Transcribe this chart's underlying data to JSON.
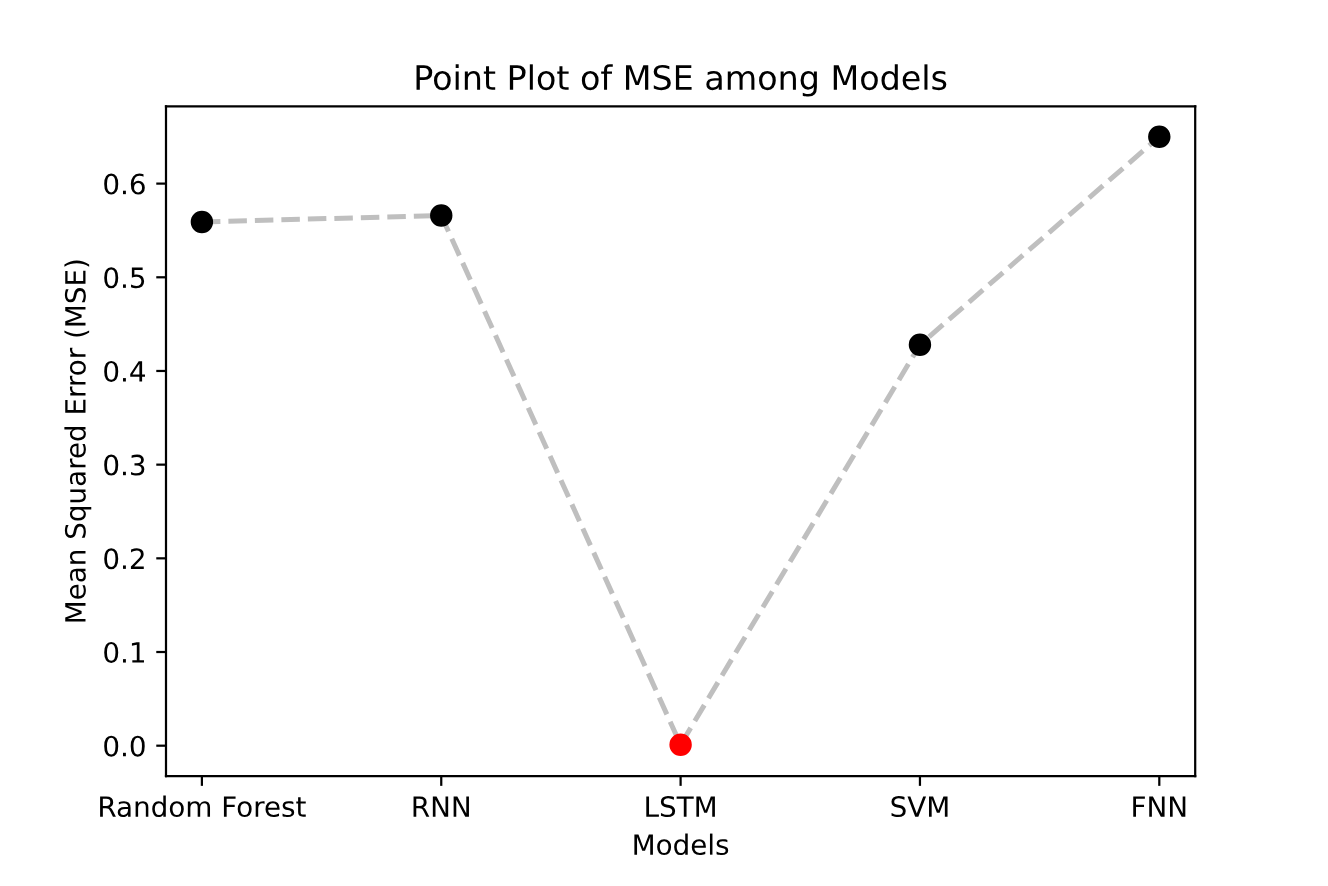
{
  "chart_data": {
    "type": "line",
    "title": "Point Plot of MSE among Models",
    "xlabel": "Models",
    "ylabel": "Mean Squared Error (MSE)",
    "categories": [
      "Random Forest",
      "RNN",
      "LSTM",
      "SVM",
      "FNN"
    ],
    "series": [
      {
        "color": "#bfbfbf",
        "colors": [
          "#000000",
          "#000000",
          "#ff0000",
          "#000000",
          "#000000"
        ],
        "values": [
          0.559,
          0.566,
          0.001,
          0.428,
          0.65
        ]
      }
    ],
    "ylim": [
      -0.0325,
      0.6825
    ],
    "yticks": [
      {
        "value": 0,
        "label": "0.0"
      },
      0.1,
      0.2,
      0.3,
      0.4,
      0.5,
      0.6
    ],
    "marker": "circle",
    "line_style": "dashed",
    "grid": false
  }
}
